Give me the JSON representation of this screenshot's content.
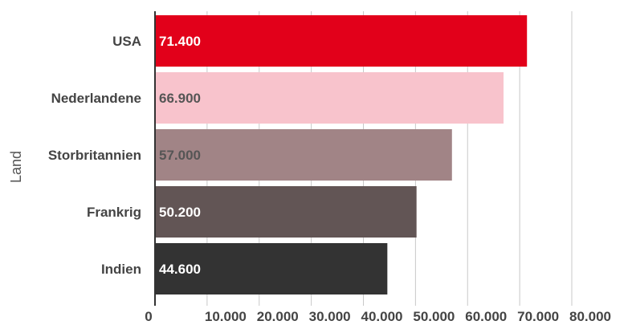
{
  "chart_data": {
    "type": "bar",
    "orientation": "horizontal",
    "ylabel": "Land",
    "xlabel": "",
    "title": "",
    "categories": [
      "USA",
      "Nederlandene",
      "Storbritannien",
      "Frankrig",
      "Indien"
    ],
    "values": [
      71400,
      66900,
      57000,
      50200,
      44600
    ],
    "value_labels": [
      "71.400",
      "66.900",
      "57.000",
      "50.200",
      "44.600"
    ],
    "bar_colors": [
      "#e2001a",
      "#f8c3cc",
      "#a18486",
      "#625555",
      "#333333"
    ],
    "value_label_colors": [
      "#ffffff",
      "#555555",
      "#555555",
      "#ffffff",
      "#ffffff"
    ],
    "xlim": [
      0,
      80000
    ],
    "xticks": [
      0,
      10000,
      20000,
      30000,
      40000,
      50000,
      60000,
      70000,
      80000
    ],
    "xtick_labels": [
      "0",
      "10.000",
      "20.000",
      "30.000",
      "40.000",
      "50.000",
      "60.000",
      "70.000",
      "80.000"
    ],
    "grid": true,
    "legend": "none"
  }
}
